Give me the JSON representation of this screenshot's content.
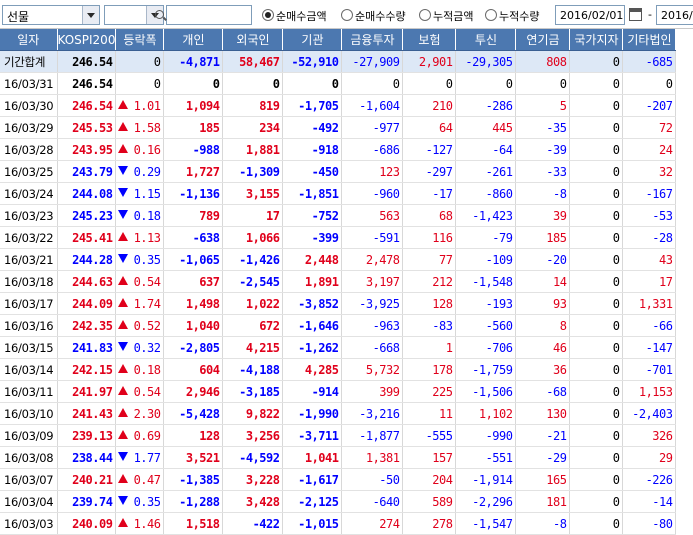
{
  "toolbar": {
    "product": "선물",
    "search_value": "",
    "radios": [
      {
        "label": "순매수금액",
        "selected": true
      },
      {
        "label": "순매수수량",
        "selected": false
      },
      {
        "label": "누적금액",
        "selected": false
      },
      {
        "label": "누적수량",
        "selected": false
      }
    ],
    "date_from": "2016/02/01",
    "date_sep": "-",
    "date_to": "2016/"
  },
  "table": {
    "columns": [
      "일자",
      "KOSPI200",
      "등락폭",
      "개인",
      "외국인",
      "기관",
      "금융투자",
      "보험",
      "투신",
      "연기금",
      "국가지자",
      "기타법인"
    ],
    "summary": {
      "date": "기간합계",
      "kospi": "246.54",
      "chg": "0",
      "dir": "zero",
      "vals": [
        "-4,871",
        "58,467",
        "-52,910",
        "-27,909",
        "2,901",
        "-29,305",
        "808",
        "0",
        "-685"
      ]
    },
    "rows": [
      {
        "date": "16/03/31",
        "kospi": "246.54",
        "dir": "zero",
        "chg": "0",
        "vals": [
          "0",
          "0",
          "0",
          "0",
          "0",
          "0",
          "0",
          "0",
          "0"
        ]
      },
      {
        "date": "16/03/30",
        "kospi": "246.54",
        "dir": "up",
        "chg": "1.01",
        "vals": [
          "1,094",
          "819",
          "-1,705",
          "-1,604",
          "210",
          "-286",
          "5",
          "0",
          "-207"
        ]
      },
      {
        "date": "16/03/29",
        "kospi": "245.53",
        "dir": "up",
        "chg": "1.58",
        "vals": [
          "185",
          "234",
          "-492",
          "-977",
          "64",
          "445",
          "-35",
          "0",
          "72"
        ]
      },
      {
        "date": "16/03/28",
        "kospi": "243.95",
        "dir": "up",
        "chg": "0.16",
        "vals": [
          "-988",
          "1,881",
          "-918",
          "-686",
          "-127",
          "-64",
          "-39",
          "0",
          "24"
        ]
      },
      {
        "date": "16/03/25",
        "kospi": "243.79",
        "dir": "dn",
        "chg": "0.29",
        "vals": [
          "1,727",
          "-1,309",
          "-450",
          "123",
          "-297",
          "-261",
          "-33",
          "0",
          "32"
        ]
      },
      {
        "date": "16/03/24",
        "kospi": "244.08",
        "dir": "dn",
        "chg": "1.15",
        "vals": [
          "-1,136",
          "3,155",
          "-1,851",
          "-960",
          "-17",
          "-860",
          "-8",
          "0",
          "-167"
        ]
      },
      {
        "date": "16/03/23",
        "kospi": "245.23",
        "dir": "dn",
        "chg": "0.18",
        "vals": [
          "789",
          "17",
          "-752",
          "563",
          "68",
          "-1,423",
          "39",
          "0",
          "-53"
        ]
      },
      {
        "date": "16/03/22",
        "kospi": "245.41",
        "dir": "up",
        "chg": "1.13",
        "vals": [
          "-638",
          "1,066",
          "-399",
          "-591",
          "116",
          "-79",
          "185",
          "0",
          "-28"
        ]
      },
      {
        "date": "16/03/21",
        "kospi": "244.28",
        "dir": "dn",
        "chg": "0.35",
        "vals": [
          "-1,065",
          "-1,426",
          "2,448",
          "2,478",
          "77",
          "-109",
          "-20",
          "0",
          "43"
        ]
      },
      {
        "date": "16/03/18",
        "kospi": "244.63",
        "dir": "up",
        "chg": "0.54",
        "vals": [
          "637",
          "-2,545",
          "1,891",
          "3,197",
          "212",
          "-1,548",
          "14",
          "0",
          "17"
        ]
      },
      {
        "date": "16/03/17",
        "kospi": "244.09",
        "dir": "up",
        "chg": "1.74",
        "vals": [
          "1,498",
          "1,022",
          "-3,852",
          "-3,925",
          "128",
          "-193",
          "93",
          "0",
          "1,331"
        ]
      },
      {
        "date": "16/03/16",
        "kospi": "242.35",
        "dir": "up",
        "chg": "0.52",
        "vals": [
          "1,040",
          "672",
          "-1,646",
          "-963",
          "-83",
          "-560",
          "8",
          "0",
          "-66"
        ]
      },
      {
        "date": "16/03/15",
        "kospi": "241.83",
        "dir": "dn",
        "chg": "0.32",
        "vals": [
          "-2,805",
          "4,215",
          "-1,262",
          "-668",
          "1",
          "-706",
          "46",
          "0",
          "-147"
        ]
      },
      {
        "date": "16/03/14",
        "kospi": "242.15",
        "dir": "up",
        "chg": "0.18",
        "vals": [
          "604",
          "-4,188",
          "4,285",
          "5,732",
          "178",
          "-1,759",
          "36",
          "0",
          "-701"
        ]
      },
      {
        "date": "16/03/11",
        "kospi": "241.97",
        "dir": "up",
        "chg": "0.54",
        "vals": [
          "2,946",
          "-3,185",
          "-914",
          "399",
          "225",
          "-1,506",
          "-68",
          "0",
          "1,153"
        ]
      },
      {
        "date": "16/03/10",
        "kospi": "241.43",
        "dir": "up",
        "chg": "2.30",
        "vals": [
          "-5,428",
          "9,822",
          "-1,990",
          "-3,216",
          "11",
          "1,102",
          "130",
          "0",
          "-2,403"
        ]
      },
      {
        "date": "16/03/09",
        "kospi": "239.13",
        "dir": "up",
        "chg": "0.69",
        "vals": [
          "128",
          "3,256",
          "-3,711",
          "-1,877",
          "-555",
          "-990",
          "-21",
          "0",
          "326"
        ]
      },
      {
        "date": "16/03/08",
        "kospi": "238.44",
        "dir": "dn",
        "chg": "1.77",
        "vals": [
          "3,521",
          "-4,592",
          "1,041",
          "1,381",
          "157",
          "-551",
          "-29",
          "0",
          "29"
        ]
      },
      {
        "date": "16/03/07",
        "kospi": "240.21",
        "dir": "up",
        "chg": "0.47",
        "vals": [
          "-1,385",
          "3,228",
          "-1,617",
          "-50",
          "204",
          "-1,914",
          "165",
          "0",
          "-226"
        ]
      },
      {
        "date": "16/03/04",
        "kospi": "239.74",
        "dir": "dn",
        "chg": "0.35",
        "vals": [
          "-1,288",
          "3,428",
          "-2,125",
          "-640",
          "589",
          "-2,296",
          "181",
          "0",
          "-14"
        ]
      },
      {
        "date": "16/03/03",
        "kospi": "240.09",
        "dir": "up",
        "chg": "1.46",
        "vals": [
          "1,518",
          "-422",
          "-1,015",
          "274",
          "278",
          "-1,547",
          "-8",
          "0",
          "-80"
        ]
      }
    ]
  },
  "colors": {
    "header_bg": "#4c78b0",
    "positive": "#e0001b",
    "negative": "#0000ff",
    "summary_bg": "#dde8f6"
  }
}
